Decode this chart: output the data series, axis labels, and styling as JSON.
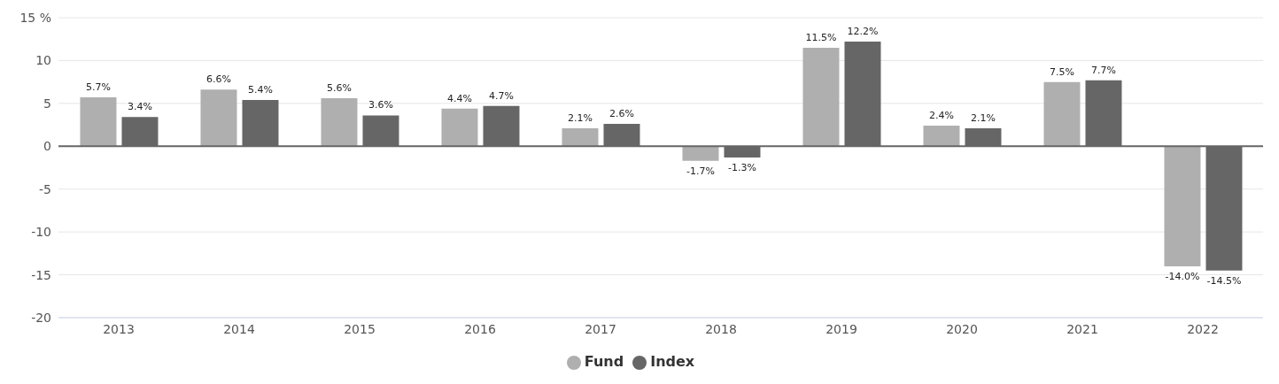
{
  "chart_data": {
    "type": "bar",
    "categories": [
      "2013",
      "2014",
      "2015",
      "2016",
      "2017",
      "2018",
      "2019",
      "2020",
      "2021",
      "2022"
    ],
    "series": [
      {
        "name": "Fund",
        "color": "#afafaf",
        "values": [
          5.7,
          6.6,
          5.6,
          4.4,
          2.1,
          -1.7,
          11.5,
          2.4,
          7.5,
          -14.0
        ],
        "value_labels": [
          "5.7%",
          "6.6%",
          "5.6%",
          "4.4%",
          "2.1%",
          "-1.7%",
          "11.5%",
          "2.4%",
          "7.5%",
          "-14.0%"
        ]
      },
      {
        "name": "Index",
        "color": "#666666",
        "values": [
          3.4,
          5.4,
          3.6,
          4.7,
          2.6,
          -1.3,
          12.2,
          2.1,
          7.7,
          -14.5
        ],
        "value_labels": [
          "3.4%",
          "5.4%",
          "3.6%",
          "4.7%",
          "2.6%",
          "-1.3%",
          "12.2%",
          "2.1%",
          "7.7%",
          "-14.5%"
        ]
      }
    ],
    "ylim": [
      -20,
      15
    ],
    "yticks": [
      -20,
      -15,
      -10,
      -5,
      0,
      5,
      10,
      {
        "value": 15,
        "label": "15 %"
      }
    ],
    "grid": "y",
    "legend": "bottom",
    "ref_lines": [
      {
        "axis": "y",
        "value": 0,
        "color": "#666666"
      }
    ]
  }
}
